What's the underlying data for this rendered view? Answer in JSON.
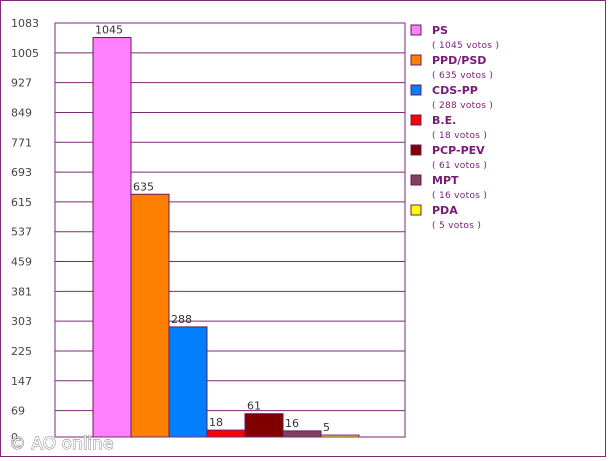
{
  "chart_data": {
    "type": "bar",
    "categories": [
      "PS",
      "PPD/PSD",
      "CDS-PP",
      "B.E.",
      "PCP-PEV",
      "MPT",
      "PDA"
    ],
    "values": [
      1045,
      635,
      288,
      18,
      61,
      16,
      5
    ],
    "legend_sublabels": [
      "( 1045 votos )",
      "( 635 votos )",
      "( 288 votos )",
      "( 18 votos )",
      "( 61 votos )",
      "( 16 votos )",
      "( 5 votos )"
    ],
    "colors": [
      "#ff80ff",
      "#ff8000",
      "#0080ff",
      "#ff0000",
      "#800000",
      "#804060",
      "#ffff00"
    ],
    "yticks": [
      0,
      69,
      147,
      225,
      303,
      381,
      459,
      537,
      615,
      693,
      771,
      849,
      927,
      1005,
      1083
    ],
    "ylim": [
      0,
      1083
    ],
    "grid": true,
    "legend_position": "right",
    "watermark": "© AO online"
  }
}
